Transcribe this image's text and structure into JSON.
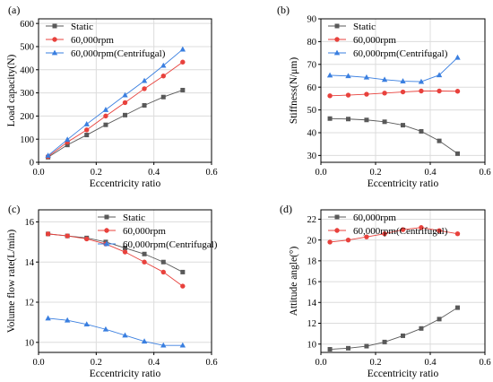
{
  "colors": {
    "static": "#595959",
    "rpm": "#e8413c",
    "centrifugal": "#3a7fe0"
  },
  "chart_data": [
    {
      "type": "line",
      "panel_label": "(a)",
      "xlabel": "Eccentricity ratio",
      "ylabel": "Load capacity(N)",
      "xlim": [
        0,
        0.6
      ],
      "ylim": [
        0,
        620
      ],
      "xticks": [
        0.0,
        0.2,
        0.4,
        0.6
      ],
      "xtick_labels": [
        "0.0",
        "0.2",
        "0.4",
        "0.6"
      ],
      "yticks": [
        0,
        100,
        200,
        300,
        400,
        500,
        600
      ],
      "ytick_labels": [
        "0",
        "100",
        "200",
        "300",
        "400",
        "500",
        "600"
      ],
      "grid": true,
      "legend": "top-left",
      "x": [
        0.033,
        0.1,
        0.167,
        0.233,
        0.3,
        0.367,
        0.433,
        0.5
      ],
      "series": [
        {
          "name": "Static",
          "marker": "square",
          "color_key": "static",
          "values": [
            22,
            75,
            118,
            162,
            204,
            246,
            282,
            312
          ]
        },
        {
          "name": "60,000rpm",
          "marker": "circle",
          "color_key": "rpm",
          "values": [
            25,
            87,
            140,
            200,
            258,
            318,
            373,
            433
          ]
        },
        {
          "name": "60,000rpm(Centrifugal)",
          "marker": "triangle",
          "color_key": "centrifugal",
          "values": [
            29,
            98,
            165,
            227,
            290,
            352,
            418,
            488
          ]
        }
      ]
    },
    {
      "type": "line",
      "panel_label": "(b)",
      "xlabel": "Eccentricity ratio",
      "ylabel": "Stiffness(N/μm)",
      "xlim": [
        0,
        0.6
      ],
      "ylim": [
        27,
        90
      ],
      "xticks": [
        0.0,
        0.2,
        0.4,
        0.6
      ],
      "xtick_labels": [
        "0.0",
        "0.2",
        "0.4",
        "0.6"
      ],
      "yticks": [
        30,
        40,
        50,
        60,
        70,
        80,
        90
      ],
      "ytick_labels": [
        "30",
        "40",
        "50",
        "60",
        "70",
        "80",
        "90"
      ],
      "grid": true,
      "legend": "top-left",
      "x": [
        0.033,
        0.1,
        0.167,
        0.233,
        0.3,
        0.367,
        0.433,
        0.5
      ],
      "series": [
        {
          "name": "Static",
          "marker": "square",
          "color_key": "static",
          "values": [
            46.2,
            46.0,
            45.6,
            44.8,
            43.3,
            40.6,
            36.4,
            30.8
          ]
        },
        {
          "name": "60,000rpm",
          "marker": "circle",
          "color_key": "rpm",
          "values": [
            56.2,
            56.5,
            56.9,
            57.4,
            57.9,
            58.3,
            58.3,
            58.2
          ]
        },
        {
          "name": "60,000rpm(Centrifugal)",
          "marker": "triangle",
          "color_key": "centrifugal",
          "values": [
            65.2,
            64.9,
            64.3,
            63.3,
            62.6,
            62.4,
            65.3,
            73.0
          ]
        }
      ]
    },
    {
      "type": "line",
      "panel_label": "(c)",
      "xlabel": "Eccentricity ratio",
      "ylabel": "Volume flow rate(L/min)",
      "xlim": [
        0,
        0.6
      ],
      "ylim": [
        9.5,
        16.6
      ],
      "xticks": [
        0.0,
        0.2,
        0.4,
        0.6
      ],
      "xtick_labels": [
        "0.0",
        "0.2",
        "0.4",
        "0.6"
      ],
      "yticks": [
        10,
        12,
        14,
        16
      ],
      "ytick_labels": [
        "10",
        "12",
        "14",
        "16"
      ],
      "grid": true,
      "legend": "top-right",
      "x": [
        0.033,
        0.1,
        0.167,
        0.233,
        0.3,
        0.367,
        0.433,
        0.5
      ],
      "series": [
        {
          "name": "Static",
          "marker": "square",
          "color_key": "static",
          "values": [
            15.4,
            15.3,
            15.2,
            15.0,
            14.7,
            14.4,
            14.0,
            13.5
          ]
        },
        {
          "name": "60,000rpm",
          "marker": "circle",
          "color_key": "rpm",
          "values": [
            15.4,
            15.3,
            15.15,
            14.9,
            14.5,
            14.0,
            13.5,
            12.8
          ]
        },
        {
          "name": "60,000rpm(Centrifugal)",
          "marker": "triangle",
          "color_key": "centrifugal",
          "values": [
            11.2,
            11.1,
            10.9,
            10.65,
            10.35,
            10.05,
            9.85,
            9.85
          ]
        }
      ]
    },
    {
      "type": "line",
      "panel_label": "(d)",
      "xlabel": "Eccentricity ratio",
      "ylabel": "Attitude angle(°)",
      "xlim": [
        0,
        0.6
      ],
      "ylim": [
        9.2,
        22.9
      ],
      "xticks": [
        0.0,
        0.2,
        0.4,
        0.6
      ],
      "xtick_labels": [
        "0.0",
        "0.2",
        "0.4",
        "0.6"
      ],
      "yticks": [
        10,
        12,
        14,
        16,
        18,
        20,
        22
      ],
      "ytick_labels": [
        "10",
        "12",
        "14",
        "16",
        "18",
        "20",
        "22"
      ],
      "grid": true,
      "legend": "top-left",
      "x": [
        0.033,
        0.1,
        0.167,
        0.233,
        0.3,
        0.367,
        0.433,
        0.5
      ],
      "series": [
        {
          "name": "60,000rpm",
          "marker": "square",
          "color_key": "static",
          "values": [
            9.5,
            9.6,
            9.8,
            10.2,
            10.8,
            11.5,
            12.4,
            13.5
          ]
        },
        {
          "name": "60,000rpm(Centrifugal)",
          "marker": "circle",
          "color_key": "rpm",
          "values": [
            19.8,
            20.0,
            20.3,
            20.6,
            21.0,
            21.2,
            20.9,
            20.6
          ]
        }
      ]
    }
  ]
}
